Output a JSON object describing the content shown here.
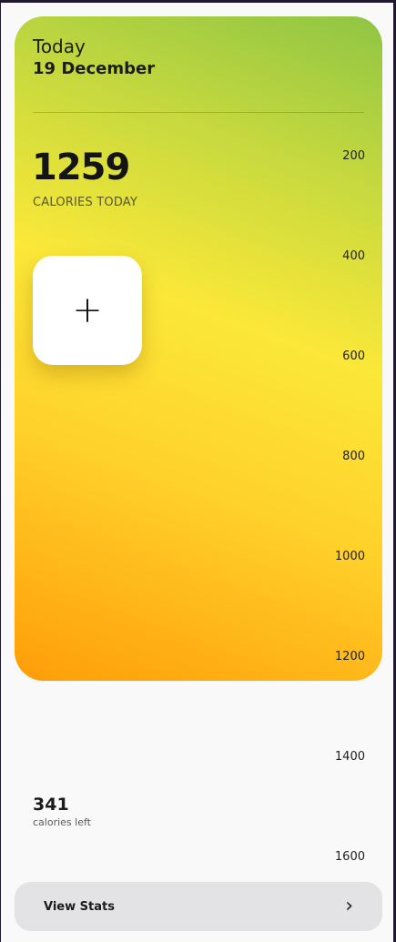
{
  "header": {
    "today_label": "Today",
    "date": "19 December"
  },
  "calories": {
    "today_value": "1259",
    "today_label": "CALORIES TODAY",
    "left_value": "341",
    "left_label": "calories left"
  },
  "add_button": {
    "icon": "plus-icon",
    "symbol": "+"
  },
  "scale": {
    "ticks": [
      "200",
      "400",
      "600",
      "800",
      "1000",
      "1200",
      "1400",
      "1600"
    ]
  },
  "stats_button": {
    "label": "View Stats",
    "icon": "chevron-right-icon",
    "symbol": "›"
  },
  "colors": {
    "gradient_top": "#8fc544",
    "gradient_mid": "#fbe838",
    "gradient_bottom": "#ff9d08",
    "background": "#f9f9f9",
    "button_bg": "#e3e3e5"
  }
}
